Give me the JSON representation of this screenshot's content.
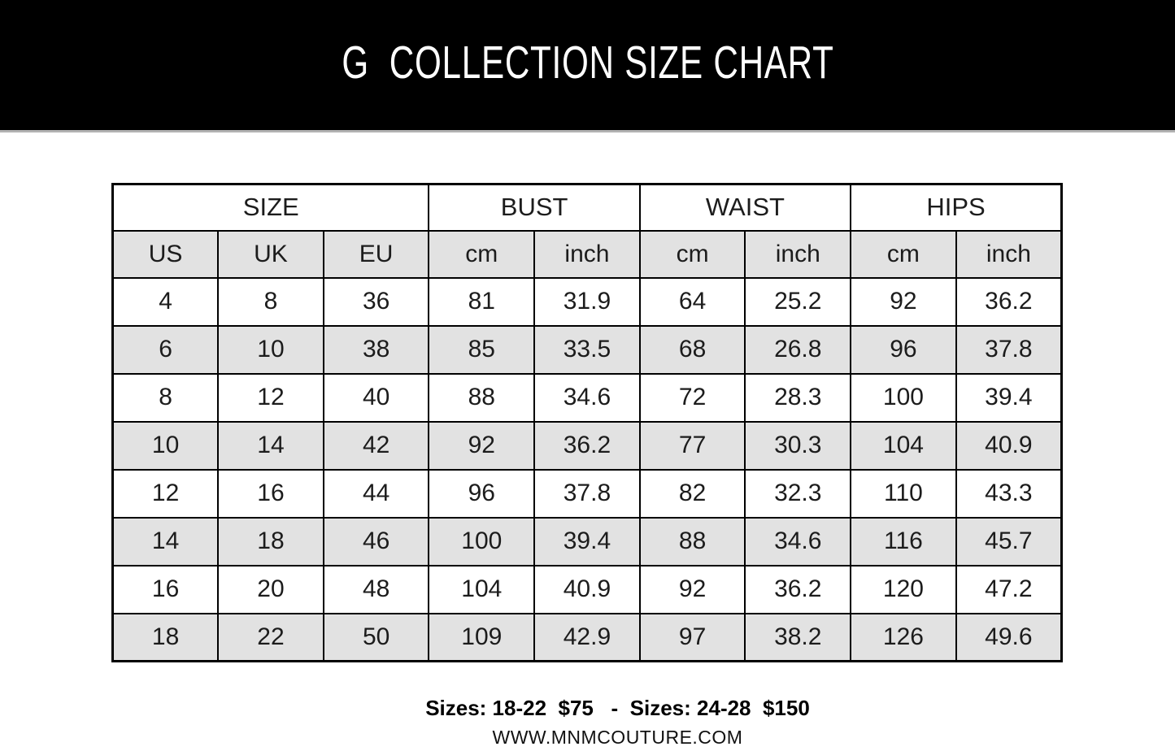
{
  "header": {
    "title": "G  COLLECTION SIZE CHART",
    "bg_color": "#000000",
    "text_color": "#ffffff"
  },
  "table": {
    "stripe_color": "#e2e2e2",
    "border_color": "#000000",
    "groups": [
      {
        "label": "SIZE",
        "span": 3
      },
      {
        "label": "BUST",
        "span": 2
      },
      {
        "label": "WAIST",
        "span": 2
      },
      {
        "label": "HIPS",
        "span": 2
      }
    ],
    "columns": [
      "US",
      "UK",
      "EU",
      "cm",
      "inch",
      "cm",
      "inch",
      "cm",
      "inch"
    ],
    "rows": [
      [
        "4",
        "8",
        "36",
        "81",
        "31.9",
        "64",
        "25.2",
        "92",
        "36.2"
      ],
      [
        "6",
        "10",
        "38",
        "85",
        "33.5",
        "68",
        "26.8",
        "96",
        "37.8"
      ],
      [
        "8",
        "12",
        "40",
        "88",
        "34.6",
        "72",
        "28.3",
        "100",
        "39.4"
      ],
      [
        "10",
        "14",
        "42",
        "92",
        "36.2",
        "77",
        "30.3",
        "104",
        "40.9"
      ],
      [
        "12",
        "16",
        "44",
        "96",
        "37.8",
        "82",
        "32.3",
        "110",
        "43.3"
      ],
      [
        "14",
        "18",
        "46",
        "100",
        "39.4",
        "88",
        "34.6",
        "116",
        "45.7"
      ],
      [
        "16",
        "20",
        "48",
        "104",
        "40.9",
        "92",
        "36.2",
        "120",
        "47.2"
      ],
      [
        "18",
        "22",
        "50",
        "109",
        "42.9",
        "97",
        "38.2",
        "126",
        "49.6"
      ]
    ]
  },
  "footer": {
    "pricing": "Sizes: 18-22  $75   -  Sizes: 24-28  $150",
    "website": "WWW.MNMCOUTURE.COM"
  }
}
